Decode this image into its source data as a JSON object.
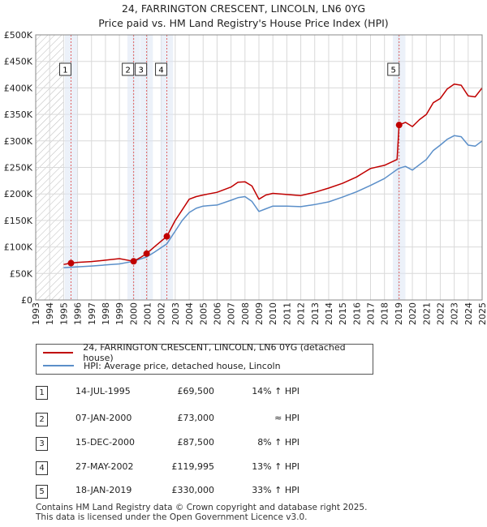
{
  "title_line1": "24, FARRINGTON CRESCENT, LINCOLN, LN6 0YG",
  "title_line2": "Price paid vs. HM Land Registry's House Price Index (HPI)",
  "chart_data": {
    "type": "line",
    "title": "24, FARRINGTON CRESCENT, LINCOLN, LN6 0YG — Price paid vs. HM Land Registry's House Price Index (HPI)",
    "xlim": [
      1993,
      2025
    ],
    "ylim": [
      0,
      500000
    ],
    "y_ticks": [
      0,
      50000,
      100000,
      150000,
      200000,
      250000,
      300000,
      350000,
      400000,
      450000,
      500000
    ],
    "y_tick_labels": [
      "£0",
      "£50K",
      "£100K",
      "£150K",
      "£200K",
      "£250K",
      "£300K",
      "£350K",
      "£400K",
      "£450K",
      "£500K"
    ],
    "x_ticks": [
      1993,
      1994,
      1995,
      1996,
      1997,
      1998,
      1999,
      2000,
      2001,
      2002,
      2003,
      2004,
      2005,
      2006,
      2007,
      2008,
      2009,
      2010,
      2011,
      2012,
      2013,
      2014,
      2015,
      2016,
      2017,
      2018,
      2019,
      2020,
      2021,
      2022,
      2023,
      2024,
      2025
    ],
    "hatched_before": 1995.0,
    "grid": true,
    "series": [
      {
        "name": "24, FARRINGTON CRESCENT, LINCOLN, LN6 0YG (detached house)",
        "color": "#c00000",
        "x": [
          1995.0,
          1995.53,
          1996,
          1997,
          1998,
          1999,
          2000.02,
          2000.5,
          2000.95,
          2001.5,
          2002.4,
          2003,
          2003.5,
          2004,
          2004.5,
          2005,
          2006,
          2007,
          2007.5,
          2008,
          2008.5,
          2009,
          2009.5,
          2010,
          2011,
          2012,
          2013,
          2014,
          2015,
          2016,
          2016.5,
          2017,
          2018,
          2018.9,
          2019.05,
          2019.5,
          2020,
          2020.5,
          2021,
          2021.5,
          2022,
          2022.5,
          2023,
          2023.5,
          2024,
          2024.5,
          2025
        ],
        "values": [
          67000,
          69500,
          71000,
          72500,
          75000,
          78000,
          73000,
          80000,
          87500,
          100000,
          119995,
          150000,
          170000,
          190000,
          195000,
          198000,
          203000,
          213000,
          222000,
          223000,
          215000,
          190000,
          198000,
          201000,
          199000,
          197000,
          203000,
          211000,
          220000,
          232000,
          240000,
          248000,
          254000,
          265000,
          330000,
          335000,
          327000,
          340000,
          350000,
          372000,
          380000,
          398000,
          407000,
          405000,
          385000,
          383000,
          400000
        ]
      },
      {
        "name": "HPI: Average price, detached house, Lincoln",
        "color": "#5b8fc9",
        "x": [
          1995.0,
          1996,
          1997,
          1998,
          1999,
          2000,
          2000.95,
          2001.5,
          2002.4,
          2003,
          2003.5,
          2004,
          2004.5,
          2005,
          2006,
          2007,
          2007.5,
          2008,
          2008.5,
          2009,
          2009.5,
          2010,
          2011,
          2012,
          2013,
          2014,
          2015,
          2016,
          2017,
          2018,
          2019,
          2019.5,
          2020,
          2020.5,
          2021,
          2021.5,
          2022,
          2022.5,
          2023,
          2023.5,
          2024,
          2024.5,
          2025
        ],
        "values": [
          61000,
          62500,
          64000,
          66000,
          68000,
          73000,
          81000,
          90000,
          106000,
          130000,
          150000,
          165000,
          173000,
          177000,
          179000,
          188000,
          193000,
          195000,
          186000,
          167000,
          172000,
          177000,
          177000,
          176000,
          180000,
          185000,
          194000,
          204000,
          216000,
          229000,
          248000,
          252000,
          245000,
          255000,
          265000,
          282000,
          292000,
          303000,
          310000,
          308000,
          292000,
          290000,
          300000
        ]
      }
    ],
    "markers": [
      {
        "label": "1",
        "x": 1995.53,
        "y": 69500
      },
      {
        "label": "2",
        "x": 2000.02,
        "y": 73000
      },
      {
        "label": "3",
        "x": 2000.95,
        "y": 87500
      },
      {
        "label": "4",
        "x": 2002.4,
        "y": 119995
      },
      {
        "label": "5",
        "x": 2019.05,
        "y": 330000
      }
    ]
  },
  "legend": {
    "series1_label": "24, FARRINGTON CRESCENT, LINCOLN, LN6 0YG (detached house)",
    "series2_label": "HPI: Average price, detached house, Lincoln",
    "series1_color": "#c00000",
    "series2_color": "#5b8fc9"
  },
  "transactions": [
    {
      "num": "1",
      "date": "14-JUL-1995",
      "price": "£69,500",
      "hpi": "14% ↑ HPI"
    },
    {
      "num": "2",
      "date": "07-JAN-2000",
      "price": "£73,000",
      "hpi": "≈ HPI"
    },
    {
      "num": "3",
      "date": "15-DEC-2000",
      "price": "£87,500",
      "hpi": "8% ↑ HPI"
    },
    {
      "num": "4",
      "date": "27-MAY-2002",
      "price": "£119,995",
      "hpi": "13% ↑ HPI"
    },
    {
      "num": "5",
      "date": "18-JAN-2019",
      "price": "£330,000",
      "hpi": "33% ↑ HPI"
    }
  ],
  "footer_line1": "Contains HM Land Registry data © Crown copyright and database right 2025.",
  "footer_line2": "This data is licensed under the Open Government Licence v3.0."
}
